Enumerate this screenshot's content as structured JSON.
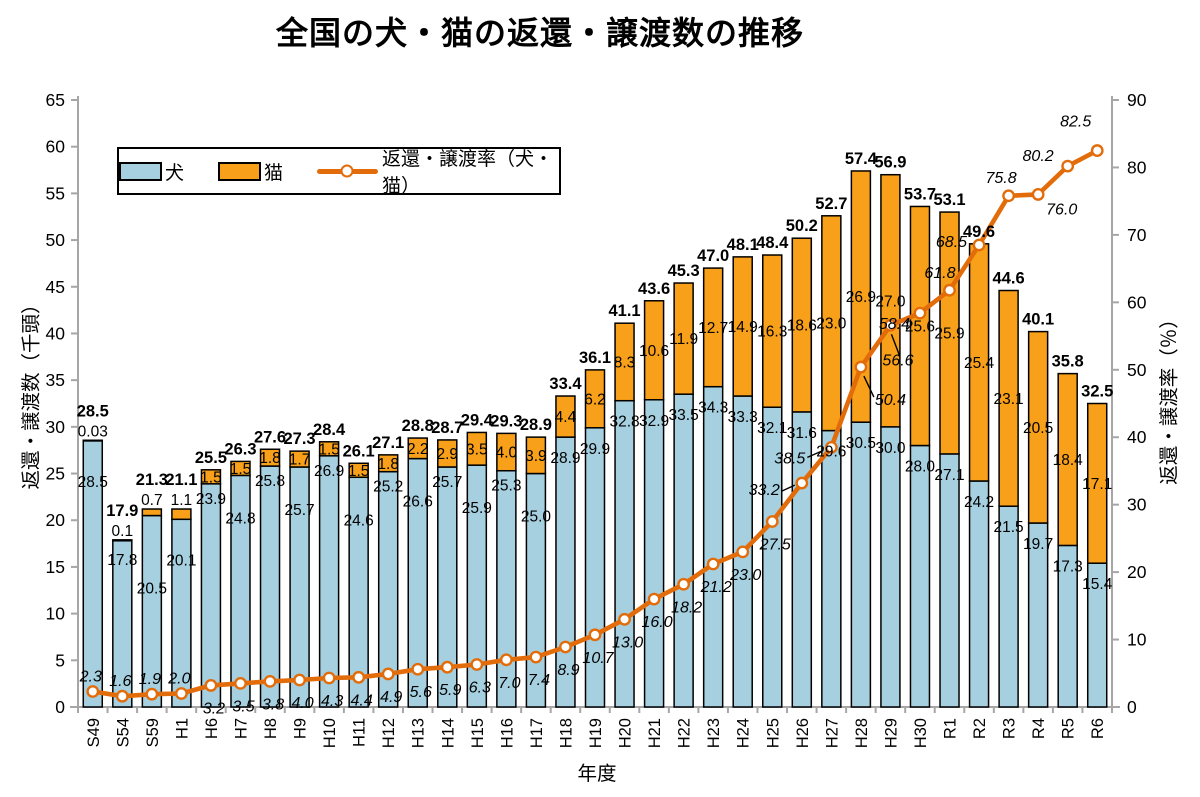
{
  "title": "全国の犬・猫の返還・譲渡数の推移",
  "legend": {
    "dog": "犬",
    "cat": "猫",
    "rate": "返還・譲渡率（犬・猫）"
  },
  "x_axis": {
    "title": "年度"
  },
  "left_axis": {
    "title": "返還・譲渡数（千頭）",
    "min": 0,
    "max": 65,
    "step": 5
  },
  "right_axis": {
    "title": "返還・譲渡率（％）",
    "min": 0,
    "max": 90,
    "step": 10
  },
  "colors": {
    "dog_fill": "#A6D0E0",
    "cat_fill": "#F8A01A",
    "line": "#E36C0A",
    "bar_border": "#000000",
    "axis": "#A6A6A6",
    "text": "#000000"
  },
  "chart_data": {
    "type": "bar",
    "subtype": "stacked-bars-with-line",
    "title": "全国の犬・猫の返還・譲渡数の推移",
    "xlabel": "年度",
    "ylabel_left": "返還・譲渡数（千頭）",
    "ylabel_right": "返還・譲渡率（％）",
    "ylim_left": [
      0,
      65
    ],
    "ylim_right": [
      0,
      90
    ],
    "grid": false,
    "legend_position": "top-left-inside",
    "categories": [
      "S49",
      "S54",
      "S59",
      "H1",
      "H6",
      "H7",
      "H8",
      "H9",
      "H10",
      "H11",
      "H12",
      "H13",
      "H14",
      "H15",
      "H16",
      "H17",
      "H18",
      "H19",
      "H20",
      "H21",
      "H22",
      "H23",
      "H24",
      "H25",
      "H26",
      "H27",
      "H28",
      "H29",
      "H30",
      "R1",
      "R2",
      "R3",
      "R4",
      "R5",
      "R6"
    ],
    "series": [
      {
        "name": "犬",
        "type": "bar",
        "axis": "left",
        "values": [
          28.5,
          17.8,
          20.5,
          20.1,
          23.9,
          24.8,
          25.8,
          25.7,
          26.9,
          24.6,
          25.2,
          26.6,
          25.7,
          25.9,
          25.3,
          25.0,
          28.9,
          29.9,
          32.8,
          32.9,
          33.5,
          34.3,
          33.3,
          32.1,
          31.6,
          29.6,
          30.5,
          30.0,
          28.0,
          27.1,
          24.2,
          21.5,
          19.7,
          17.3,
          15.4
        ],
        "labels": [
          "28.5",
          "17.8",
          "20.5",
          "20.1",
          "23.9",
          "24.8",
          "25.8",
          "25.7",
          "26.9",
          "24.6",
          "25.2",
          "26.6",
          "25.7",
          "25.9",
          "25.3",
          "25.0",
          "28.9",
          "29.9",
          "32.8",
          "32.9",
          "33.5",
          "34.3",
          "33.3",
          "32.1",
          "31.6",
          "29.6",
          "30.5",
          "30.0",
          "28.0",
          "27.1",
          "24.2",
          "21.5",
          "19.7",
          "17.3",
          "15.4"
        ]
      },
      {
        "name": "猫",
        "type": "bar",
        "axis": "left",
        "values": [
          0.03,
          0.1,
          0.7,
          1.1,
          1.5,
          1.5,
          1.8,
          1.7,
          1.5,
          1.5,
          1.8,
          2.2,
          2.9,
          3.5,
          4.0,
          3.9,
          4.4,
          6.2,
          8.3,
          10.6,
          11.9,
          12.7,
          14.9,
          16.3,
          18.6,
          23.0,
          26.9,
          27.0,
          25.6,
          25.9,
          25.4,
          23.1,
          20.5,
          18.4,
          17.1
        ],
        "labels": [
          "0.03",
          "0.1",
          "0.7",
          "1.1",
          "1.5",
          "1.5",
          "1.8",
          "1.7",
          "1.5",
          "1.5",
          "1.8",
          "2.2",
          "2.9",
          "3.5",
          "4.0",
          "3.9",
          "4.4",
          "6.2",
          "8.3",
          "10.6",
          "11.9",
          "12.7",
          "14.9",
          "16.3",
          "18.6",
          "23.0",
          "26.9",
          "27.0",
          "25.6",
          "25.9",
          "25.4",
          "23.1",
          "20.5",
          "18.4",
          "17.1"
        ]
      },
      {
        "name": "返還・譲渡率（犬・猫）",
        "type": "line",
        "axis": "right",
        "values": [
          2.3,
          1.6,
          1.9,
          2.0,
          3.2,
          3.5,
          3.8,
          4.0,
          4.3,
          4.4,
          4.9,
          5.6,
          5.9,
          6.3,
          7.0,
          7.4,
          8.9,
          10.7,
          13.0,
          16.0,
          18.2,
          21.2,
          23.0,
          27.5,
          33.2,
          38.5,
          50.4,
          56.6,
          58.4,
          61.8,
          68.5,
          75.8,
          76.0,
          80.2,
          82.5
        ],
        "labels": [
          "2.3",
          "1.6",
          "1.9",
          "2.0",
          "3.2",
          "3.5",
          "3.8",
          "4.0",
          "4.3",
          "4.4",
          "4.9",
          "5.6",
          "5.9",
          "6.3",
          "7.0",
          "7.4",
          "8.9",
          "10.7",
          "13.0",
          "16.0",
          "18.2",
          "21.2",
          "23.0",
          "27.5",
          "33.2",
          "38.5",
          "50.4",
          "56.6",
          "58.4",
          "61.8",
          "68.5",
          "75.8",
          "76.0",
          "80.2",
          "82.5"
        ]
      }
    ],
    "totals": [
      28.5,
      17.9,
      21.3,
      21.1,
      25.5,
      26.3,
      27.6,
      27.3,
      28.4,
      26.1,
      27.1,
      28.8,
      28.7,
      29.4,
      29.3,
      28.9,
      33.4,
      36.1,
      41.1,
      43.6,
      45.3,
      47.0,
      48.1,
      48.4,
      50.2,
      52.7,
      57.4,
      56.9,
      53.7,
      53.1,
      49.6,
      44.6,
      40.1,
      35.8,
      32.5
    ],
    "total_labels": [
      "28.5",
      "17.9",
      "21.3",
      "21.1",
      "25.5",
      "26.3",
      "27.6",
      "27.3",
      "28.4",
      "26.1",
      "27.1",
      "28.8",
      "28.7",
      "29.4",
      "29.3",
      "28.9",
      "33.4",
      "36.1",
      "41.1",
      "43.6",
      "45.3",
      "47.0",
      "48.1",
      "48.4",
      "50.2",
      "52.7",
      "57.4",
      "56.9",
      "53.7",
      "53.1",
      "49.6",
      "44.6",
      "40.1",
      "35.8",
      "32.5"
    ]
  }
}
